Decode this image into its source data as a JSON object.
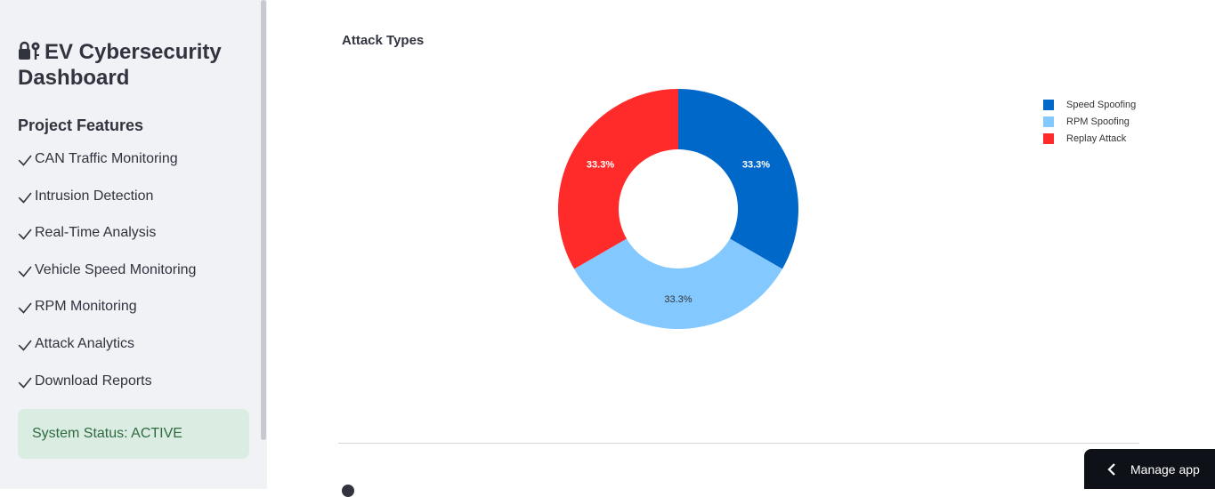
{
  "sidebar": {
    "title": "EV Cybersecurity Dashboard",
    "title_icon": "lock-key-icon",
    "features_heading": "Project Features",
    "feature_icon": "check-icon",
    "features": [
      "CAN Traffic Monitoring",
      "Intrusion Detection",
      "Real-Time Analysis",
      "Vehicle Speed Monitoring",
      "RPM Monitoring",
      "Attack Analytics",
      "Download Reports"
    ],
    "status": "System Status: ACTIVE",
    "status_color": "#2e6b3f"
  },
  "main": {
    "manage_app_label": "Manage app"
  },
  "chart_data": {
    "type": "pie",
    "title": "Attack Types",
    "hole": true,
    "categories": [
      "Speed Spoofing",
      "RPM Spoofing",
      "Replay Attack"
    ],
    "values": [
      33.3,
      33.3,
      33.3
    ],
    "labels": [
      "33.3%",
      "33.3%",
      "33.3%"
    ],
    "colors": [
      "#0068c9",
      "#83c9ff",
      "#ff2b2b"
    ],
    "legend_position": "top-right"
  }
}
